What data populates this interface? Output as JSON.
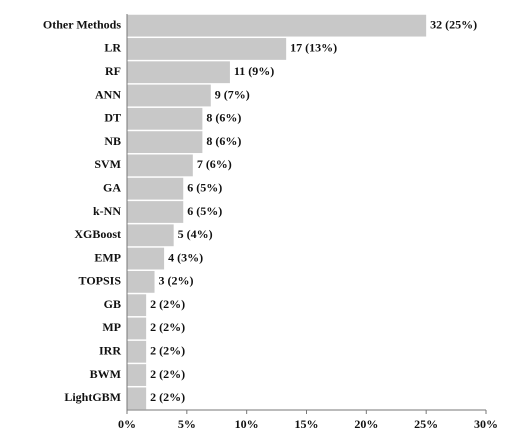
{
  "chart_data": {
    "type": "hbar",
    "categories": [
      "Other Methods",
      "LR",
      "RF",
      "ANN",
      "DT",
      "NB",
      "SVM",
      "GA",
      "k-NN",
      "XGBoost",
      "EMP",
      "TOPSIS",
      "GB",
      "MP",
      "IRR",
      "BWM",
      "LightGBM"
    ],
    "values": [
      25,
      13.3,
      8.6,
      7,
      6.3,
      6.3,
      5.5,
      4.7,
      4.7,
      3.9,
      3.1,
      2.3,
      1.6,
      1.6,
      1.6,
      1.6,
      1.6
    ],
    "value_labels": [
      "32 (25%)",
      "17 (13%)",
      "11 (9%)",
      "9 (7%)",
      "8 (6%)",
      "8 (6%)",
      "7 (6%)",
      "6 (5%)",
      "6 (5%)",
      "5 (4%)",
      "4 (3%)",
      "3 (2%)",
      "2 (2%)",
      "2 (2%)",
      "2 (2%)",
      "2 (2%)",
      "2 (2%)"
    ],
    "color": "#c8c8c8",
    "xlim": [
      0,
      30
    ],
    "xticks": [
      {
        "value": 0,
        "label": "0%"
      },
      {
        "value": 5,
        "label": "5%"
      },
      {
        "value": 10,
        "label": "10%"
      },
      {
        "value": 15,
        "label": "15%"
      },
      {
        "value": 20,
        "label": "20%"
      },
      {
        "value": 25,
        "label": "25%"
      },
      {
        "value": 30,
        "label": "30%"
      }
    ]
  }
}
